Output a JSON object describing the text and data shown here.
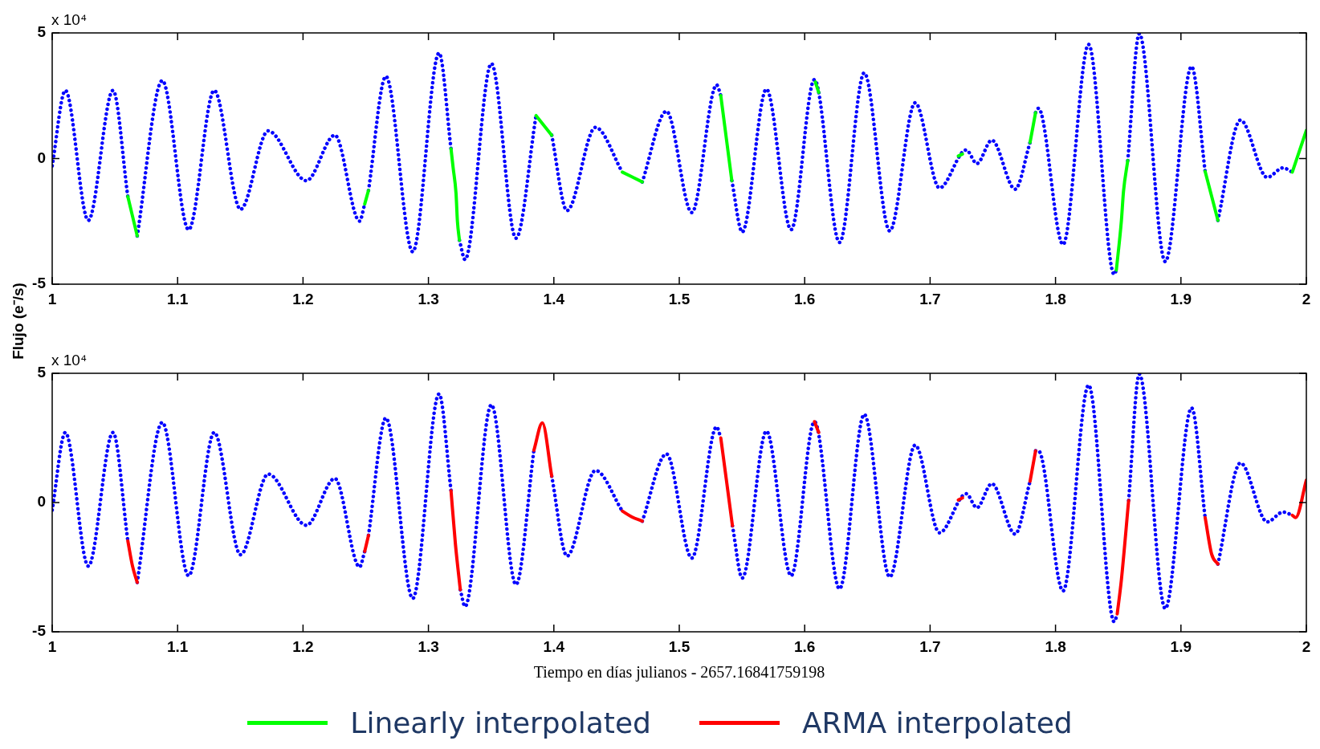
{
  "chart_data": [
    {
      "type": "line",
      "ylabel": "Flujo (e⁻/s)",
      "annotations": [
        "x 10⁴"
      ],
      "xlim": [
        1,
        2
      ],
      "xticks": [
        1,
        1.1,
        1.2,
        1.3,
        1.4,
        1.5,
        1.6,
        1.7,
        1.8,
        1.9,
        2
      ],
      "ylim": [
        -5,
        5
      ],
      "yticks": [
        -5,
        0,
        5
      ],
      "legend": "bottom",
      "series": [
        {
          "type": "line",
          "line_style": "dotted",
          "color": "#0000ff",
          "x": [
            1.0,
            1.0105,
            1.0288,
            1.0485,
            1.0603,
            1.064,
            1.0678,
            1.0878,
            1.1088,
            1.1292,
            1.1502,
            1.1722,
            1.2027,
            1.2254,
            1.2451,
            1.2492,
            1.2507,
            1.2522,
            1.2661,
            1.2875,
            1.3085,
            1.318,
            1.321,
            1.3247,
            1.3292,
            1.3502,
            1.3698,
            1.3858,
            1.392,
            1.3983,
            1.4105,
            1.4332,
            1.4546,
            1.462,
            1.4705,
            1.4898,
            1.51,
            1.5298,
            1.5331,
            1.5375,
            1.5419,
            1.5502,
            1.5695,
            1.5892,
            1.6078,
            1.6278,
            1.6475,
            1.6678,
            1.6881,
            1.7075,
            1.7288,
            1.7373,
            1.7492,
            1.7678,
            1.7797,
            1.782,
            1.7841,
            1.7864,
            1.806,
            1.8264,
            1.8468,
            1.8485,
            1.853,
            1.8576,
            1.8668,
            1.8875,
            1.9085,
            1.9193,
            1.924,
            1.9295,
            1.9475,
            1.9688,
            1.9814,
            1.9888
          ],
          "values": [
            -0.29,
            2.71,
            -2.46,
            2.71,
            -1.51,
            null,
            -3.08,
            3.1,
            -2.83,
            2.71,
            -2.02,
            1.1,
            -0.88,
            0.93,
            -2.49,
            -1.81,
            null,
            -1.27,
            3.27,
            -3.71,
            4.2,
            0.39,
            null,
            -3.25,
            -4.02,
            3.78,
            -3.17,
            1.71,
            null,
            0.93,
            -2.07,
            1.24,
            -0.54,
            null,
            -0.93,
            1.88,
            -2.15,
            2.93,
            2.51,
            null,
            -0.88,
            -2.92,
            2.76,
            -2.83,
            3.14,
            -3.34,
            3.41,
            -2.88,
            2.22,
            -1.17,
            0.34,
            -0.2,
            0.73,
            -1.22,
            0.64,
            null,
            1.83,
            2.0,
            -3.42,
            4.54,
            -4.61,
            -4.44,
            null,
            -0.08,
            4.97,
            -4.1,
            3.66,
            -0.51,
            null,
            -2.46,
            1.53,
            -0.75,
            -0.37,
            -0.54
          ]
        },
        {
          "type": "line",
          "name": "Linearly interpolated",
          "color": "#00ff00",
          "x": [
            1.0603,
            1.0678,
            1.1,
            1.2492,
            1.2522,
            1.28,
            1.318,
            1.3197,
            1.322,
            1.3231,
            1.3247,
            1.35,
            1.3858,
            1.3983,
            1.42,
            1.4546,
            1.4705,
            1.5,
            1.5331,
            1.5419,
            1.58,
            1.6085,
            1.6112,
            1.7,
            1.7225,
            1.7258,
            1.75,
            1.7797,
            1.7841,
            1.82,
            1.8485,
            1.8525,
            1.8542,
            1.8576,
            1.9,
            1.9193,
            1.9295,
            1.95,
            1.9888,
            2.0
          ],
          "values": [
            -1.51,
            -3.08,
            null,
            -1.81,
            -1.27,
            null,
            0.39,
            -0.37,
            -1.39,
            -2.49,
            -3.25,
            null,
            1.71,
            0.93,
            null,
            -0.54,
            -0.93,
            null,
            2.51,
            -0.88,
            null,
            3.05,
            2.63,
            null,
            0.1,
            0.18,
            null,
            0.64,
            1.83,
            null,
            -4.44,
            -2.49,
            -1.31,
            -0.08,
            null,
            -0.51,
            -2.46,
            null,
            -0.54,
            1.12
          ]
        }
      ]
    },
    {
      "type": "line",
      "xlabel": "Tiempo en días julianos - 2657.16841759198",
      "annotations": [
        "x 10⁴"
      ],
      "xlim": [
        1,
        2
      ],
      "xticks": [
        1,
        1.1,
        1.2,
        1.3,
        1.4,
        1.5,
        1.6,
        1.7,
        1.8,
        1.9,
        2
      ],
      "ylim": [
        -5,
        5
      ],
      "yticks": [
        -5,
        0,
        5
      ],
      "legend": "bottom",
      "series": [
        {
          "type": "line",
          "line_style": "dotted",
          "color": "#0000ff",
          "x": [
            1.0,
            1.0105,
            1.0288,
            1.0485,
            1.0603,
            1.064,
            1.0678,
            1.0878,
            1.1088,
            1.1292,
            1.1502,
            1.1722,
            1.2027,
            1.2254,
            1.2451,
            1.2492,
            1.2507,
            1.2522,
            1.2661,
            1.2875,
            1.3085,
            1.318,
            1.321,
            1.3254,
            1.3292,
            1.3502,
            1.3698,
            1.3841,
            1.392,
            1.3983,
            1.4105,
            1.4332,
            1.4546,
            1.462,
            1.4705,
            1.4898,
            1.51,
            1.5298,
            1.5331,
            1.5375,
            1.5424,
            1.5502,
            1.5695,
            1.5892,
            1.6078,
            1.6278,
            1.6475,
            1.6678,
            1.6881,
            1.7075,
            1.7288,
            1.7373,
            1.7492,
            1.7678,
            1.7797,
            1.782,
            1.7841,
            1.7864,
            1.806,
            1.8264,
            1.8468,
            1.8492,
            1.853,
            1.8583,
            1.8668,
            1.8875,
            1.9085,
            1.9193,
            1.924,
            1.9295,
            1.9475,
            1.9688,
            1.9814,
            1.9888
          ],
          "values": [
            -0.29,
            2.71,
            -2.46,
            2.71,
            -1.48,
            null,
            -3.09,
            3.1,
            -2.83,
            2.71,
            -2.02,
            1.1,
            -0.88,
            0.93,
            -2.49,
            -1.89,
            null,
            -1.27,
            3.27,
            -3.71,
            4.2,
            0.46,
            null,
            -3.37,
            -4.02,
            3.78,
            -3.17,
            2.02,
            null,
            1.02,
            -2.07,
            1.24,
            -0.33,
            null,
            -0.72,
            1.88,
            -2.15,
            2.93,
            2.5,
            null,
            -0.9,
            -2.92,
            2.76,
            -2.83,
            3.13,
            -3.34,
            3.41,
            -2.88,
            2.22,
            -1.17,
            0.34,
            -0.2,
            0.73,
            -1.22,
            0.82,
            null,
            2.0,
            2.0,
            -3.42,
            4.54,
            -4.61,
            -4.31,
            null,
            0.08,
            4.97,
            -4.1,
            3.66,
            -0.58,
            null,
            -2.38,
            1.53,
            -0.75,
            -0.37,
            -0.49
          ]
        },
        {
          "type": "line",
          "name": "ARMA interpolated",
          "color": "#ff0000",
          "x": [
            1.0603,
            1.064,
            1.0678,
            1.1,
            1.2492,
            1.2522,
            1.28,
            1.318,
            1.3215,
            1.3254,
            1.35,
            1.3841,
            1.3908,
            1.3983,
            1.42,
            1.4546,
            1.462,
            1.4705,
            1.5,
            1.5331,
            1.5375,
            1.5424,
            1.58,
            1.6078,
            1.6112,
            1.7,
            1.7225,
            1.7258,
            1.75,
            1.7797,
            1.7841,
            1.82,
            1.8492,
            1.8525,
            1.8583,
            1.9,
            1.9193,
            1.9245,
            1.9295,
            1.95,
            1.9888,
            1.9915,
            2.0
          ],
          "values": [
            -1.48,
            -2.45,
            -3.09,
            null,
            -1.89,
            -1.27,
            null,
            0.46,
            -1.6,
            -3.37,
            null,
            2.02,
            3.08,
            1.02,
            null,
            -0.33,
            -0.55,
            -0.72,
            null,
            2.5,
            0.9,
            -0.9,
            null,
            3.13,
            2.71,
            null,
            0.1,
            0.18,
            null,
            0.82,
            2.0,
            null,
            -4.31,
            -3.0,
            0.08,
            null,
            -0.58,
            -2.0,
            -2.38,
            null,
            -0.49,
            -0.58,
            0.87
          ]
        }
      ]
    }
  ]
}
